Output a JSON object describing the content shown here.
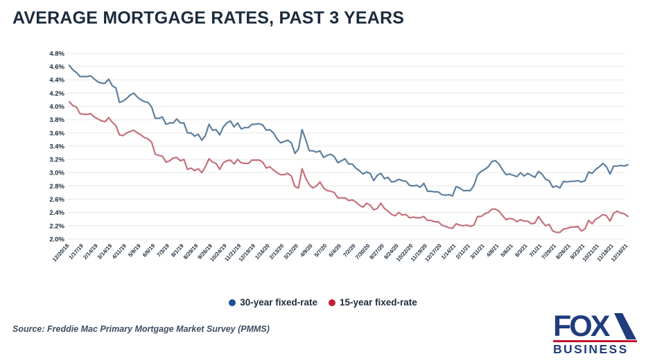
{
  "title": "AVERAGE MORTGAGE RATES, PAST 3 YEARS",
  "source_note": "Source: Freddie Mac Primary Mortgage Market Survey (PMMS)",
  "logo": {
    "brand": "FOX",
    "sub": "BUSINESS",
    "navy": "#1f3c7d",
    "red": "#c41230"
  },
  "colors": {
    "title_text": "#1b2b3c",
    "tick_text": "#1b2b3c",
    "grid": "#ececec",
    "source_text": "#3c4e61",
    "background": "#ffffff"
  },
  "chart_data": {
    "type": "line",
    "title": "AVERAGE MORTGAGE RATES, PAST 3 YEARS",
    "xlabel": "",
    "ylabel": "",
    "ylim": [
      2.0,
      4.8
    ],
    "ytick_step": 0.2,
    "ytick_labels": [
      "4.8%",
      "4.6%",
      "4.4%",
      "4.2%",
      "4.0%",
      "3.8%",
      "3.6%",
      "3.4%",
      "3.2%",
      "3.0%",
      "2.8%",
      "2.6%",
      "2.4%",
      "2.2%",
      "2.0%"
    ],
    "xtick_labels": [
      "12/20/18",
      "1/17/19",
      "2/14/19",
      "3/14/19",
      "4/11/19",
      "5/9/19",
      "6/6/19",
      "7/3/19",
      "8/1/19",
      "8/29/19",
      "9/26/19",
      "10/24/19",
      "11/21/19",
      "12/19/19",
      "1/16/20",
      "2/13/20",
      "3/12/20",
      "4/9/20",
      "5/7/20",
      "6/4/20",
      "7/2/20",
      "7/30/20",
      "8/27/20",
      "9/24/20",
      "10/22/20",
      "11/19/20",
      "12/17/20",
      "1/14/21",
      "2/11/21",
      "3/11/21",
      "4/8/21",
      "5/6/21",
      "6/3/21",
      "7/1/21",
      "7/29/21",
      "8/26/21",
      "9/23/21",
      "10/21/21",
      "11/18/21",
      "12/16/21"
    ],
    "grid": true,
    "legend_position": "bottom",
    "x_frequency": "weekly",
    "series": [
      {
        "name": "30-year fixed-rate",
        "line_color": "#5d7e9e",
        "dot_color": "#1d4d9c",
        "values": [
          4.62,
          4.55,
          4.51,
          4.45,
          4.45,
          4.45,
          4.46,
          4.41,
          4.37,
          4.35,
          4.35,
          4.41,
          4.31,
          4.28,
          4.06,
          4.08,
          4.12,
          4.17,
          4.2,
          4.14,
          4.1,
          4.07,
          4.06,
          3.99,
          3.82,
          3.82,
          3.84,
          3.73,
          3.75,
          3.75,
          3.81,
          3.75,
          3.75,
          3.6,
          3.6,
          3.55,
          3.58,
          3.49,
          3.56,
          3.73,
          3.64,
          3.65,
          3.57,
          3.69,
          3.75,
          3.78,
          3.69,
          3.75,
          3.66,
          3.68,
          3.68,
          3.73,
          3.73,
          3.74,
          3.72,
          3.64,
          3.65,
          3.6,
          3.51,
          3.45,
          3.47,
          3.49,
          3.45,
          3.29,
          3.36,
          3.65,
          3.5,
          3.33,
          3.33,
          3.31,
          3.33,
          3.23,
          3.26,
          3.28,
          3.24,
          3.15,
          3.18,
          3.21,
          3.13,
          3.13,
          3.07,
          3.03,
          2.98,
          3.01,
          2.99,
          2.88,
          2.96,
          2.99,
          2.91,
          2.93,
          2.86,
          2.87,
          2.9,
          2.88,
          2.87,
          2.81,
          2.8,
          2.81,
          2.78,
          2.84,
          2.72,
          2.72,
          2.71,
          2.71,
          2.67,
          2.66,
          2.67,
          2.65,
          2.79,
          2.77,
          2.73,
          2.73,
          2.73,
          2.81,
          2.97,
          3.02,
          3.05,
          3.09,
          3.17,
          3.18,
          3.13,
          3.04,
          2.97,
          2.98,
          2.96,
          2.94,
          3.0,
          2.95,
          2.99,
          2.96,
          2.93,
          3.02,
          2.98,
          2.9,
          2.88,
          2.78,
          2.8,
          2.77,
          2.87,
          2.86,
          2.87,
          2.87,
          2.88,
          2.86,
          2.88,
          3.01,
          2.99,
          3.05,
          3.09,
          3.14,
          3.09,
          2.98,
          3.1,
          3.1,
          3.11,
          3.1,
          3.12
        ]
      },
      {
        "name": "15-year fixed-rate",
        "line_color": "#c4707a",
        "dot_color": "#c32038",
        "values": [
          4.07,
          4.01,
          3.99,
          3.89,
          3.88,
          3.88,
          3.89,
          3.84,
          3.81,
          3.78,
          3.77,
          3.83,
          3.76,
          3.71,
          3.57,
          3.56,
          3.6,
          3.62,
          3.64,
          3.6,
          3.57,
          3.53,
          3.51,
          3.46,
          3.28,
          3.26,
          3.25,
          3.16,
          3.18,
          3.22,
          3.23,
          3.18,
          3.2,
          3.05,
          3.07,
          3.03,
          3.06,
          3.0,
          3.09,
          3.21,
          3.16,
          3.14,
          3.05,
          3.15,
          3.18,
          3.19,
          3.13,
          3.2,
          3.15,
          3.14,
          3.14,
          3.19,
          3.19,
          3.19,
          3.16,
          3.07,
          3.09,
          3.04,
          3.0,
          2.97,
          2.97,
          2.99,
          2.95,
          2.79,
          2.77,
          3.06,
          2.92,
          2.82,
          2.77,
          2.8,
          2.86,
          2.77,
          2.73,
          2.72,
          2.7,
          2.62,
          2.62,
          2.62,
          2.58,
          2.59,
          2.56,
          2.51,
          2.48,
          2.54,
          2.51,
          2.44,
          2.46,
          2.54,
          2.46,
          2.42,
          2.37,
          2.35,
          2.4,
          2.36,
          2.37,
          2.32,
          2.33,
          2.32,
          2.32,
          2.34,
          2.28,
          2.28,
          2.26,
          2.26,
          2.21,
          2.19,
          2.17,
          2.16,
          2.23,
          2.21,
          2.2,
          2.21,
          2.19,
          2.21,
          2.34,
          2.34,
          2.38,
          2.4,
          2.45,
          2.45,
          2.42,
          2.35,
          2.29,
          2.31,
          2.3,
          2.26,
          2.29,
          2.27,
          2.27,
          2.23,
          2.24,
          2.34,
          2.26,
          2.2,
          2.22,
          2.12,
          2.1,
          2.1,
          2.15,
          2.16,
          2.18,
          2.18,
          2.19,
          2.12,
          2.15,
          2.28,
          2.23,
          2.3,
          2.33,
          2.37,
          2.35,
          2.27,
          2.39,
          2.42,
          2.39,
          2.38,
          2.34
        ]
      }
    ]
  }
}
